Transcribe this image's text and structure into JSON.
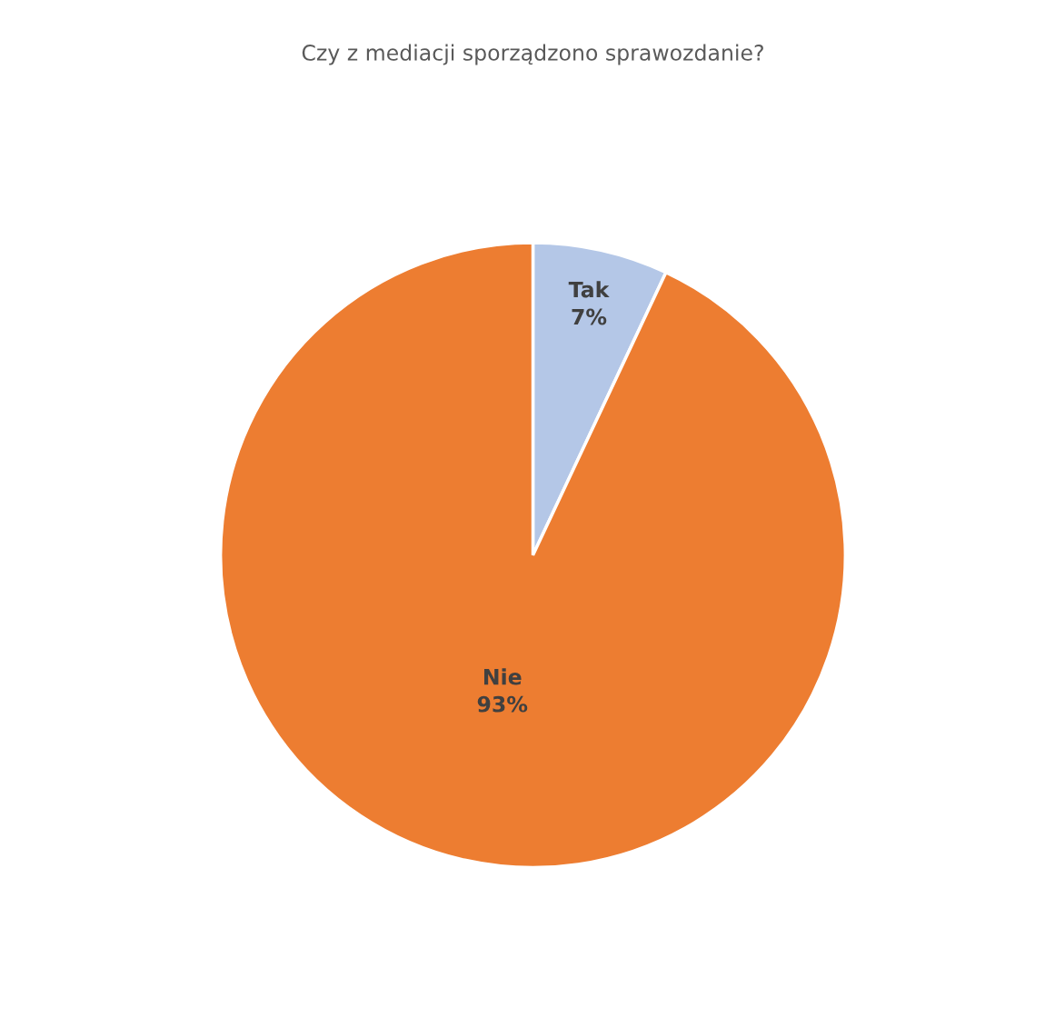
{
  "chart_data": {
    "type": "pie",
    "title": "Czy z mediacji sporządzono sprawozdanie?",
    "categories": [
      "Tak",
      "Nie"
    ],
    "values": [
      7,
      93
    ],
    "colors": [
      "#b4c7e7",
      "#ed7d31"
    ],
    "value_labels": [
      "7%",
      "93%"
    ]
  }
}
